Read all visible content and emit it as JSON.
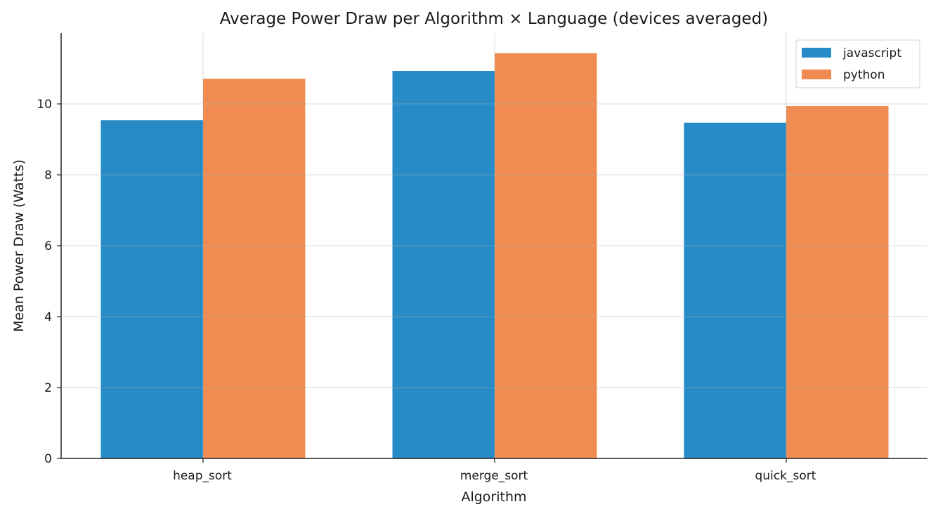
{
  "chart_data": {
    "type": "bar",
    "title": "Average Power Draw per Algorithm × Language (devices averaged)",
    "xlabel": "Algorithm",
    "ylabel": "Mean Power Draw (Watts)",
    "categories": [
      "heap_sort",
      "merge_sort",
      "quick_sort"
    ],
    "series": [
      {
        "name": "javascript",
        "color": "#268bc6",
        "values": [
          9.54,
          10.93,
          9.47
        ]
      },
      {
        "name": "python",
        "color": "#f08c51",
        "values": [
          10.71,
          11.43,
          9.94
        ]
      }
    ],
    "ylim": [
      0,
      12
    ],
    "yticks": [
      0,
      2,
      4,
      6,
      8,
      10
    ],
    "grid": true,
    "legend_position": "upper right"
  }
}
